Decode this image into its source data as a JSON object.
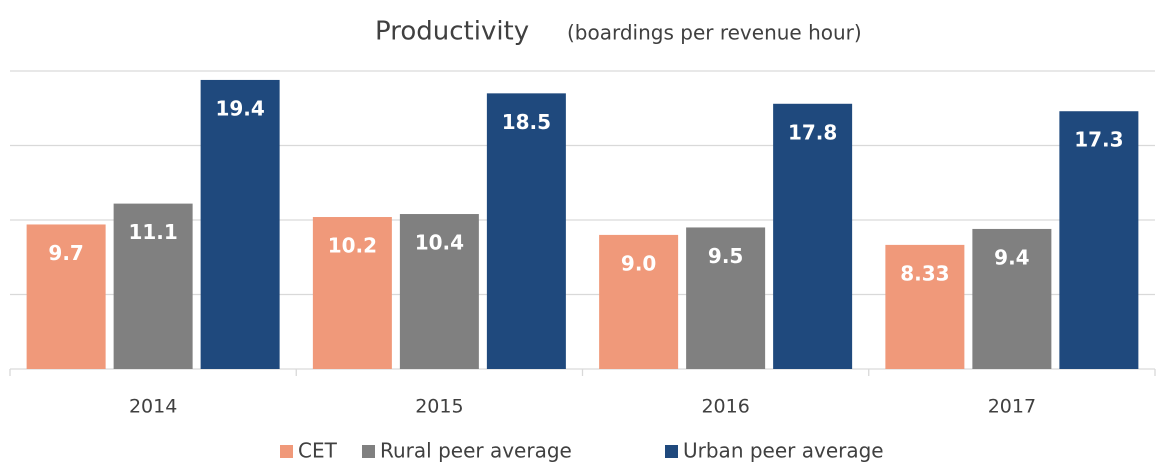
{
  "chart_data": {
    "type": "bar",
    "title": "Productivity",
    "subtitle": "(boardings per revenue hour)",
    "categories": [
      "2014",
      "2015",
      "2016",
      "2017"
    ],
    "series": [
      {
        "name": "CET",
        "color": "#f0997a",
        "values": [
          9.7,
          10.2,
          9.0,
          8.33
        ],
        "value_labels": [
          "9.7",
          "10.2",
          "9.0",
          "8.33"
        ]
      },
      {
        "name": "Rural peer average",
        "color": "#808080",
        "values": [
          11.1,
          10.4,
          9.5,
          9.4
        ],
        "value_labels": [
          "11.1",
          "10.4",
          "9.5",
          "9.4"
        ]
      },
      {
        "name": "Urban peer average",
        "color": "#1f497d",
        "values": [
          19.4,
          18.5,
          17.8,
          17.3
        ],
        "value_labels": [
          "19.4",
          "18.5",
          "17.8",
          "17.3"
        ]
      }
    ],
    "ylim": [
      0,
      20
    ],
    "yticks": [
      0,
      5,
      10,
      15,
      20
    ],
    "grid": true,
    "legend": "bottom"
  }
}
